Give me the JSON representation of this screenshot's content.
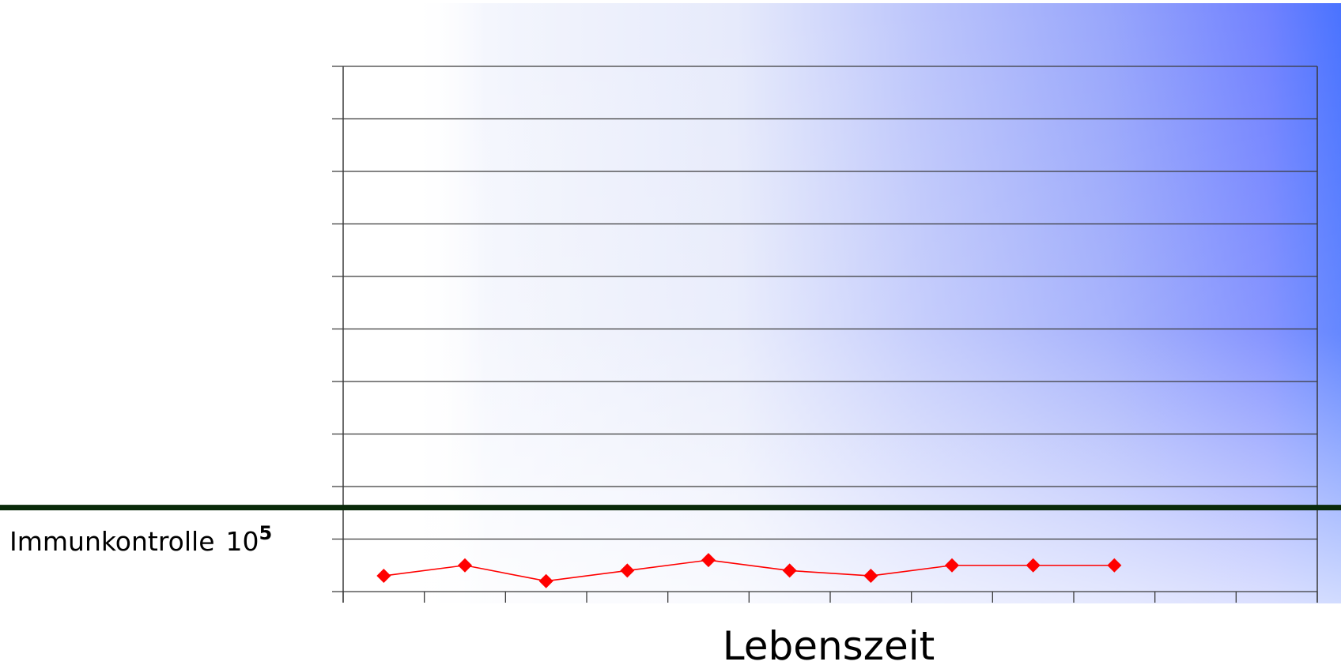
{
  "chart_data": {
    "type": "line",
    "title": "",
    "xlabel": "Lebenszeit",
    "ylabel": "",
    "x": [
      1,
      2,
      3,
      4,
      5,
      6,
      7,
      8,
      9,
      10
    ],
    "series": [
      {
        "values": [
          0.3,
          0.5,
          0.2,
          0.4,
          0.6,
          0.4,
          0.3,
          0.5,
          0.5,
          0.5
        ],
        "color": "#ff0000",
        "marker": "diamond"
      }
    ],
    "xlim": [
      0.5,
      12.5
    ],
    "ylim": [
      0,
      10
    ],
    "x_tick_count": 13,
    "y_tick_count": 11,
    "grid": "horizontal",
    "reference_line": {
      "label": "Immunkontrolle",
      "value_label_base": "10",
      "value_label_exp": "5",
      "y": 1.6,
      "color": "#0a2a0a"
    },
    "background": {
      "type": "gradient",
      "colors": [
        "#ffffff",
        "#e8ecfb",
        "#b8c2fb",
        "#8a9cff",
        "#6b7fff",
        "#3a6bff"
      ]
    }
  }
}
